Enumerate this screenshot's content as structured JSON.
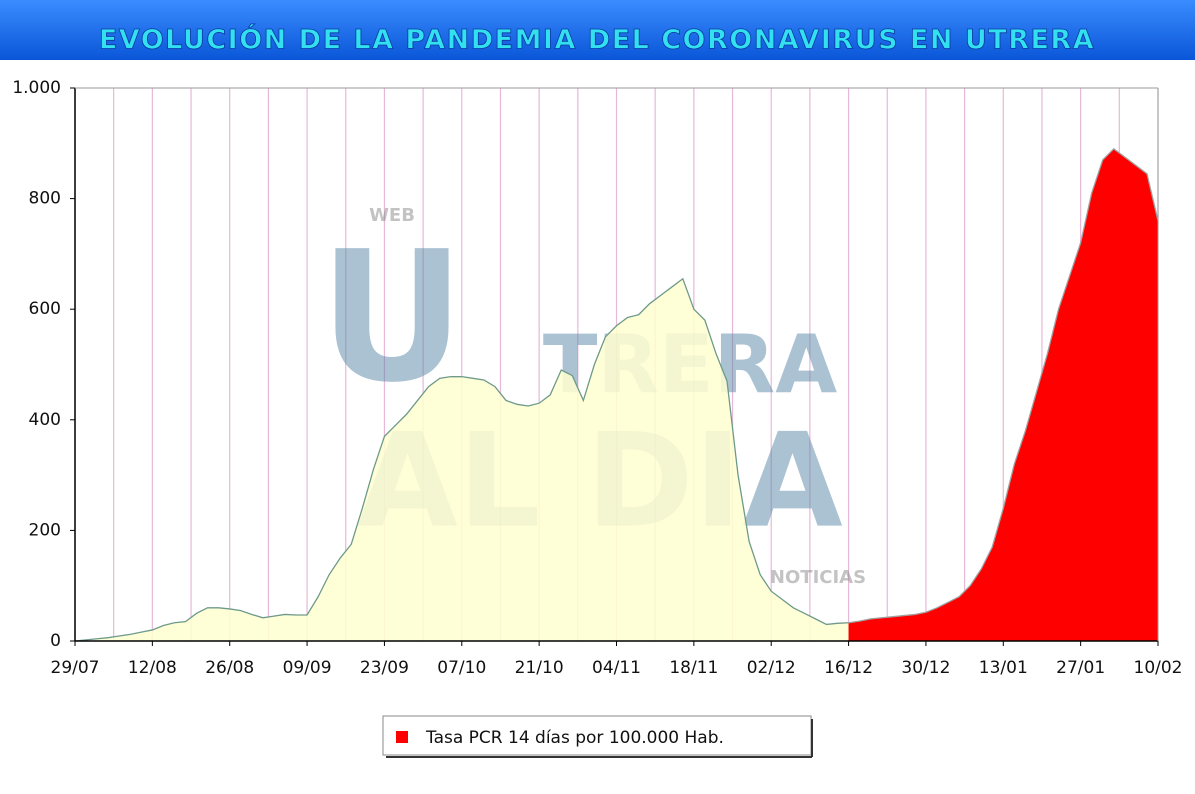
{
  "chart_data": {
    "type": "area",
    "title": "EVOLUCIÓN DE LA PANDEMIA DEL CORONAVIRUS EN UTRERA",
    "watermark": [
      "WEB",
      "U",
      "TRERA",
      "AL DIA",
      "NOTICIAS"
    ],
    "categories": [
      "29/07",
      null,
      null,
      null,
      null,
      null,
      null,
      "12/08",
      null,
      null,
      null,
      null,
      null,
      null,
      "26/08",
      null,
      null,
      null,
      null,
      null,
      null,
      "09/09",
      null,
      null,
      null,
      null,
      null,
      null,
      "23/09",
      null,
      null,
      null,
      null,
      null,
      null,
      "07/10",
      null,
      null,
      null,
      null,
      null,
      null,
      "21/10",
      null,
      null,
      null,
      null,
      null,
      null,
      "04/11",
      null,
      null,
      null,
      null,
      null,
      null,
      "18/11",
      null,
      null,
      null,
      null,
      null,
      null,
      "02/12",
      null,
      null,
      null,
      null,
      null,
      null,
      "16/12",
      null,
      null,
      null,
      null,
      null,
      null,
      "30/12",
      null,
      null,
      null,
      null,
      null,
      null,
      "13/01",
      null,
      null,
      null,
      null,
      null,
      null,
      "27/01",
      null,
      null,
      null,
      null,
      null,
      null,
      "10/02"
    ],
    "series": [
      {
        "color": "#ffffd0",
        "line_color": "#6e9a8a",
        "values": [
          0,
          2,
          4,
          6,
          9,
          12,
          16,
          20,
          28,
          33,
          35,
          50,
          60,
          60,
          58,
          55,
          48,
          42,
          45,
          48,
          47,
          47,
          80,
          120,
          150,
          175,
          240,
          310,
          370,
          390,
          410,
          435,
          460,
          475,
          478,
          478,
          475,
          472,
          460,
          435,
          428,
          425,
          430,
          445,
          490,
          480,
          435,
          500,
          550,
          570,
          585,
          590,
          610,
          625,
          640,
          655,
          600,
          580,
          520,
          470,
          300,
          180,
          120,
          90,
          75,
          60,
          50,
          40,
          30,
          32,
          33,
          null,
          null,
          null,
          null,
          null,
          null,
          null,
          null,
          null,
          null,
          null,
          null,
          null,
          null,
          null,
          null,
          null,
          null,
          null,
          null,
          null,
          null,
          null,
          null,
          null,
          null,
          null,
          null
        ]
      },
      {
        "name": "Tasa PCR 14 días por 100.000 Hab.",
        "color": "#ff0000",
        "line_color": "#a0a0a0",
        "values": [
          null,
          null,
          null,
          null,
          null,
          null,
          null,
          null,
          null,
          null,
          null,
          null,
          null,
          null,
          null,
          null,
          null,
          null,
          null,
          null,
          null,
          null,
          null,
          null,
          null,
          null,
          null,
          null,
          null,
          null,
          null,
          null,
          null,
          null,
          null,
          null,
          null,
          null,
          null,
          null,
          null,
          null,
          null,
          null,
          null,
          null,
          null,
          null,
          null,
          null,
          null,
          null,
          null,
          null,
          null,
          null,
          null,
          null,
          null,
          null,
          null,
          null,
          null,
          null,
          null,
          null,
          null,
          null,
          null,
          null,
          33,
          36,
          40,
          42,
          44,
          46,
          48,
          52,
          60,
          70,
          80,
          100,
          130,
          170,
          240,
          320,
          380,
          450,
          520,
          600,
          660,
          720,
          810,
          870,
          890,
          875,
          860,
          845,
          760
        ]
      }
    ],
    "ylim": [
      0,
      1000
    ],
    "yticks": [
      0,
      200,
      400,
      600,
      800,
      {
        "value": 1000,
        "label": "1.000"
      }
    ],
    "grid": true
  }
}
